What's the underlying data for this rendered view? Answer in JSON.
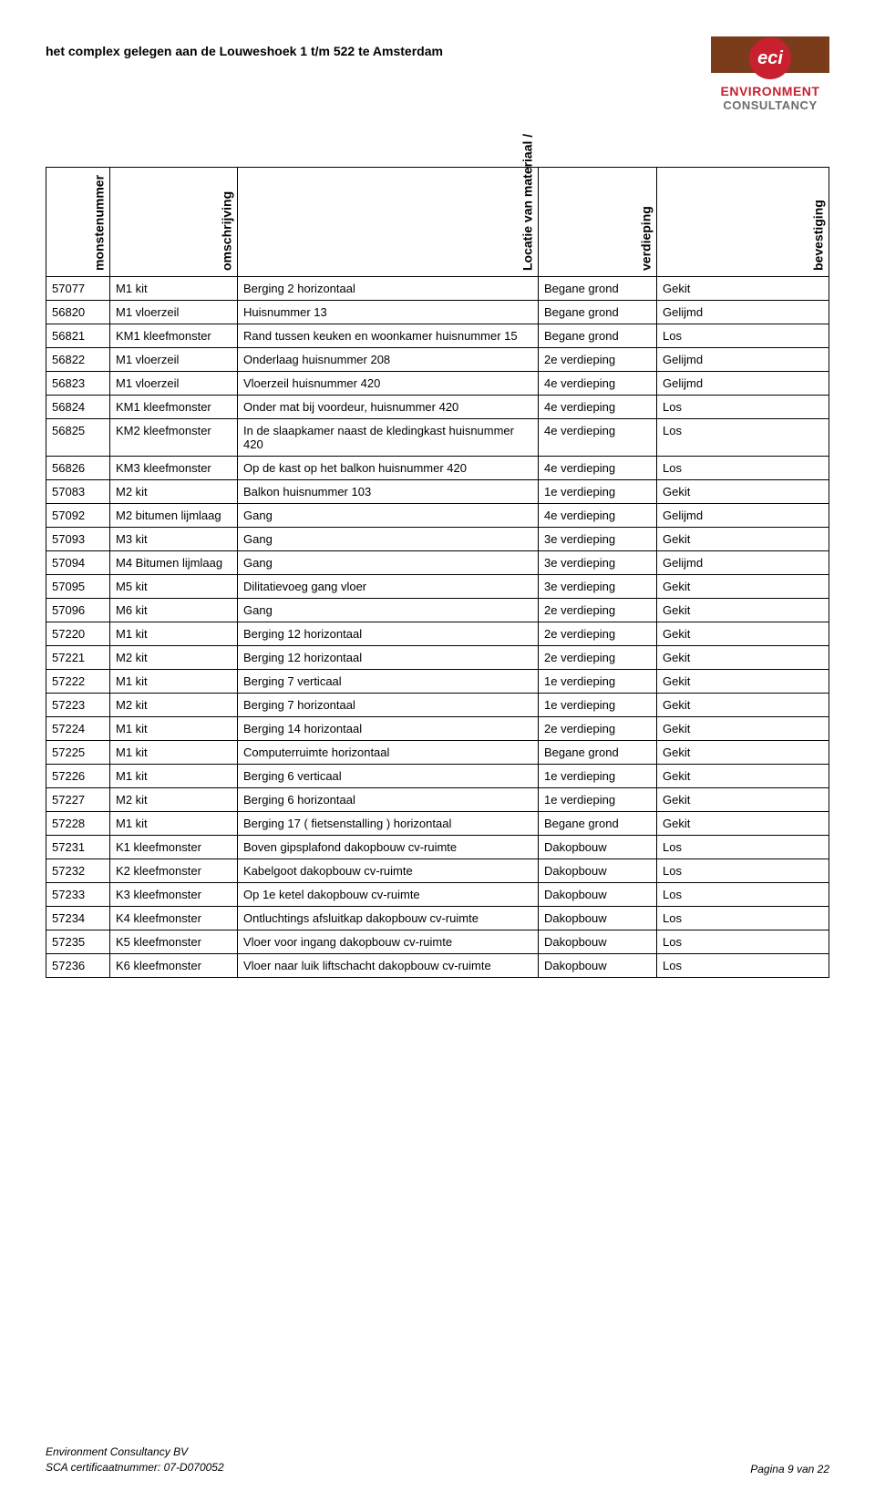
{
  "header": {
    "title": "het complex gelegen aan de Louweshoek 1 t/m 522 te Amsterdam"
  },
  "logo": {
    "abbrev": "eci",
    "line1": "ENVIRONMENT",
    "line2": "CONSULTANCY"
  },
  "table": {
    "columns": [
      "monstenummer",
      "omschrijving",
      "Locatie van\nmateriaal /",
      "verdieping",
      "bevestiging"
    ],
    "rows": [
      [
        "57077",
        "M1 kit",
        "Berging 2 horizontaal",
        "Begane grond",
        "Gekit"
      ],
      [
        "56820",
        "M1 vloerzeil",
        "Huisnummer 13",
        "Begane grond",
        "Gelijmd"
      ],
      [
        "56821",
        "KM1 kleefmonster",
        "Rand tussen keuken en woonkamer huisnummer 15",
        "Begane grond",
        "Los"
      ],
      [
        "56822",
        "M1 vloerzeil",
        "Onderlaag huisnummer 208",
        "2e verdieping",
        "Gelijmd"
      ],
      [
        "56823",
        "M1 vloerzeil",
        "Vloerzeil huisnummer 420",
        "4e verdieping",
        "Gelijmd"
      ],
      [
        "56824",
        "KM1 kleefmonster",
        "Onder mat bij voordeur, huisnummer 420",
        "4e verdieping",
        "Los"
      ],
      [
        "56825",
        "KM2 kleefmonster",
        "In de slaapkamer naast de kledingkast huisnummer 420",
        "4e verdieping",
        "Los"
      ],
      [
        "56826",
        "KM3 kleefmonster",
        "Op de kast op het balkon huisnummer 420",
        "4e verdieping",
        "Los"
      ],
      [
        "57083",
        "M2 kit",
        "Balkon huisnummer 103",
        "1e verdieping",
        "Gekit"
      ],
      [
        "57092",
        "M2 bitumen lijmlaag",
        "Gang",
        "4e verdieping",
        "Gelijmd"
      ],
      [
        "57093",
        "M3 kit",
        "Gang",
        "3e verdieping",
        "Gekit"
      ],
      [
        "57094",
        "M4 Bitumen lijmlaag",
        "Gang",
        "3e verdieping",
        "Gelijmd"
      ],
      [
        "57095",
        "M5 kit",
        "Dilitatievoeg gang vloer",
        "3e verdieping",
        "Gekit"
      ],
      [
        "57096",
        "M6 kit",
        "Gang",
        "2e verdieping",
        "Gekit"
      ],
      [
        "57220",
        "M1 kit",
        "Berging 12 horizontaal",
        "2e verdieping",
        "Gekit"
      ],
      [
        "57221",
        "M2 kit",
        "Berging 12 horizontaal",
        "2e verdieping",
        "Gekit"
      ],
      [
        "57222",
        "M1 kit",
        "Berging 7 verticaal",
        "1e verdieping",
        "Gekit"
      ],
      [
        "57223",
        "M2 kit",
        "Berging 7 horizontaal",
        "1e verdieping",
        "Gekit"
      ],
      [
        "57224",
        "M1 kit",
        "Berging 14 horizontaal",
        "2e verdieping",
        "Gekit"
      ],
      [
        "57225",
        "M1 kit",
        "Computerruimte horizontaal",
        "Begane grond",
        "Gekit"
      ],
      [
        "57226",
        "M1 kit",
        "Berging 6 verticaal",
        "1e verdieping",
        "Gekit"
      ],
      [
        "57227",
        "M2 kit",
        "Berging 6 horizontaal",
        "1e verdieping",
        "Gekit"
      ],
      [
        "57228",
        "M1 kit",
        "Berging 17 ( fietsenstalling ) horizontaal",
        "Begane grond",
        "Gekit"
      ],
      [
        "57231",
        "K1 kleefmonster",
        "Boven gipsplafond dakopbouw cv-ruimte",
        "Dakopbouw",
        "Los"
      ],
      [
        "57232",
        "K2 kleefmonster",
        "Kabelgoot dakopbouw cv-ruimte",
        "Dakopbouw",
        "Los"
      ],
      [
        "57233",
        "K3 kleefmonster",
        "Op 1e ketel dakopbouw cv-ruimte",
        "Dakopbouw",
        "Los"
      ],
      [
        "57234",
        "K4 kleefmonster",
        "Ontluchtings afsluitkap dakopbouw cv-ruimte",
        "Dakopbouw",
        "Los"
      ],
      [
        "57235",
        "K5 kleefmonster",
        "Vloer voor ingang dakopbouw cv-ruimte",
        "Dakopbouw",
        "Los"
      ],
      [
        "57236",
        "K6 kleefmonster",
        "Vloer naar luik liftschacht dakopbouw cv-ruimte",
        "Dakopbouw",
        "Los"
      ]
    ]
  },
  "footer": {
    "company": "Environment Consultancy BV",
    "cert": "SCA certificaatnummer: 07-D070052",
    "page": "Pagina 9 van 22"
  }
}
